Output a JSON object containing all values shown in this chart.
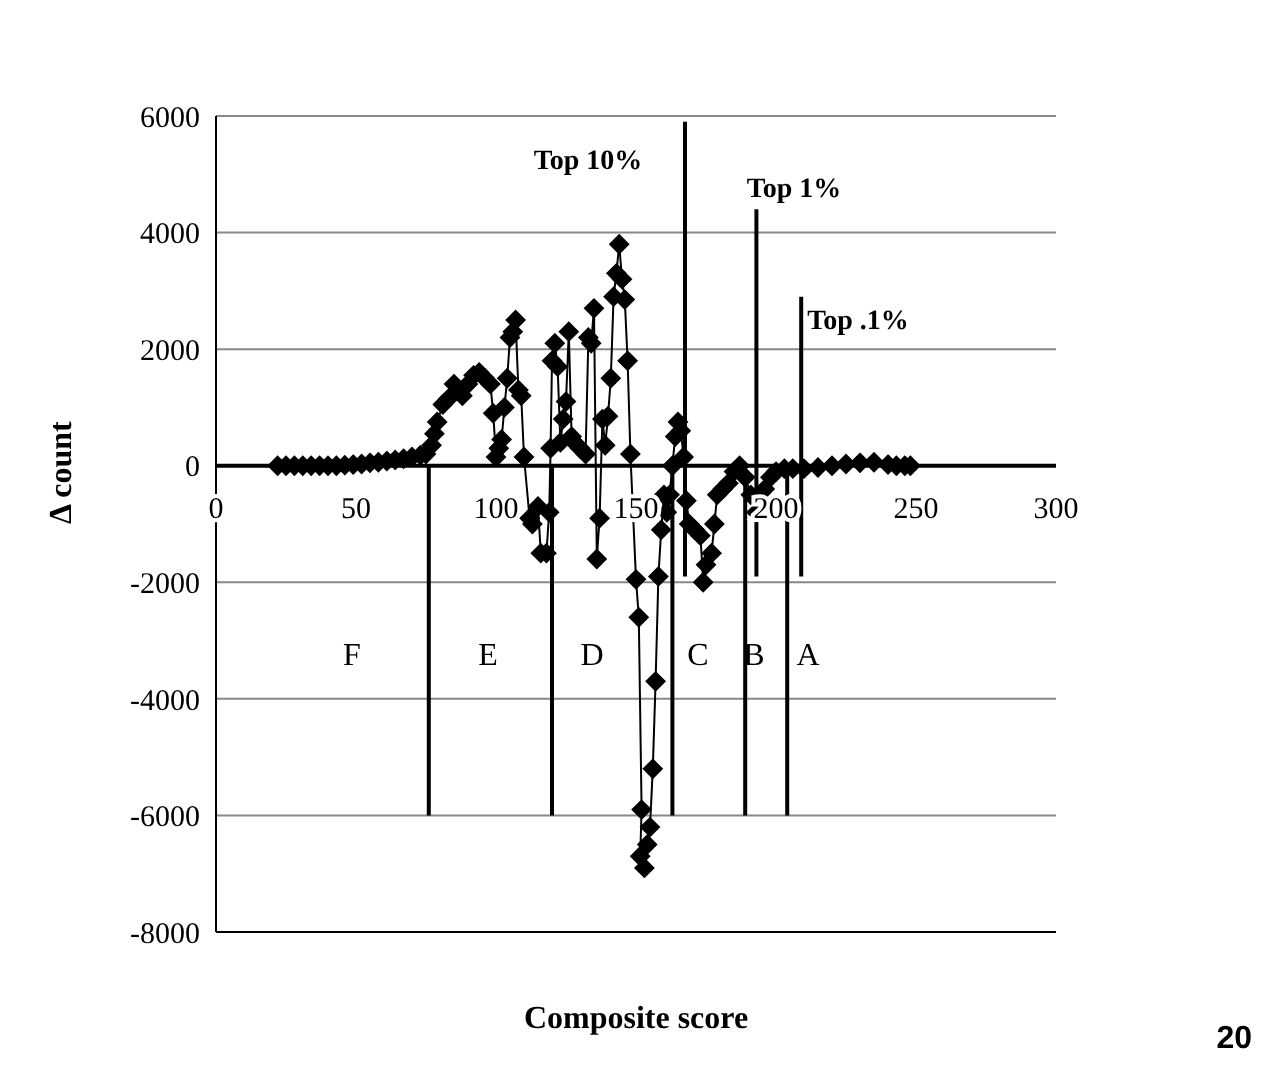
{
  "chart_data": {
    "type": "line",
    "xlabel": "Composite score",
    "ylabel": "Δ count",
    "xlim": [
      0,
      300
    ],
    "xticks": [
      0,
      50,
      100,
      150,
      200,
      250,
      300
    ],
    "ylim": [
      -8000,
      6000
    ],
    "yticks": [
      -8000,
      -6000,
      -4000,
      -2000,
      0,
      2000,
      4000,
      6000
    ],
    "grid": "y",
    "marker": "diamond",
    "series": [
      {
        "color": "#000000",
        "x": [
          22,
          25,
          28,
          31,
          34,
          37,
          40,
          43,
          46,
          49,
          52,
          55,
          58,
          61,
          64,
          67,
          70,
          73,
          75,
          77,
          78,
          79,
          81,
          83,
          85,
          87,
          88,
          90,
          92,
          94,
          96,
          98,
          99,
          100,
          101,
          102,
          103,
          104,
          105,
          106,
          107,
          108,
          109,
          110,
          112,
          113,
          115,
          116,
          118,
          119,
          119.5,
          120,
          121,
          122,
          123,
          124,
          125,
          126,
          127,
          128,
          130,
          132,
          133,
          134,
          135,
          136,
          137,
          138,
          139,
          140,
          141,
          142,
          143,
          144,
          145,
          146,
          147,
          148,
          150,
          151,
          152,
          151.5,
          153,
          154,
          155,
          156,
          157,
          158,
          159,
          160,
          161,
          162,
          163,
          164,
          165,
          166,
          167,
          168,
          169,
          171,
          173,
          174,
          175,
          177,
          178,
          179,
          181,
          183,
          185,
          187,
          189,
          191,
          193,
          194,
          196,
          198,
          200,
          203,
          206,
          210,
          215,
          220,
          225,
          230,
          235,
          240,
          243,
          246,
          248
        ],
        "values": [
          0,
          0,
          0,
          0,
          0,
          0,
          0,
          0,
          10,
          20,
          30,
          50,
          60,
          80,
          100,
          120,
          150,
          180,
          200,
          350,
          550,
          750,
          1050,
          1150,
          1400,
          1300,
          1200,
          1400,
          1550,
          1600,
          1500,
          1400,
          900,
          150,
          300,
          450,
          1000,
          1500,
          2200,
          2300,
          2500,
          1300,
          1200,
          150,
          -900,
          -1000,
          -700,
          -1500,
          -1500,
          -800,
          300,
          1800,
          2100,
          1700,
          400,
          800,
          1100,
          2300,
          500,
          400,
          300,
          200,
          2200,
          2100,
          2700,
          -1600,
          -900,
          800,
          350,
          850,
          1500,
          2900,
          3300,
          3800,
          3200,
          2850,
          1800,
          200,
          -1950,
          -2600,
          -5900,
          -6700,
          -6900,
          -6500,
          -6200,
          -5200,
          -3700,
          -1900,
          -1100,
          -500,
          -800,
          -500,
          0,
          500,
          750,
          600,
          150,
          -600,
          -1000,
          -1100,
          -1200,
          -2000,
          -1700,
          -1500,
          -1000,
          -500,
          -400,
          -300,
          -100,
          0,
          -200,
          -500,
          -800,
          -600,
          -400,
          -200,
          -100,
          -50,
          -50,
          -50,
          -30,
          0,
          30,
          50,
          60,
          20,
          0,
          0,
          0
        ]
      },
      {
        "color": "#000000",
        "marker": "none",
        "x": [
          76,
          76
        ],
        "values": [
          0,
          -6000
        ]
      },
      {
        "color": "#000000",
        "marker": "none",
        "x": [
          120,
          120
        ],
        "values": [
          0,
          -6000
        ]
      },
      {
        "color": "#000000",
        "marker": "none",
        "x": [
          163,
          163
        ],
        "values": [
          0,
          -6000
        ]
      },
      {
        "color": "#000000",
        "marker": "none",
        "x": [
          189,
          189
        ],
        "values": [
          0,
          -6000
        ]
      },
      {
        "color": "#000000",
        "marker": "none",
        "x": [
          204,
          204
        ],
        "values": [
          0,
          -6000
        ]
      },
      {
        "color": "#000000",
        "marker": "none",
        "x": [
          167.5,
          167.5
        ],
        "values": [
          -1900,
          5900
        ]
      },
      {
        "color": "#000000",
        "marker": "none",
        "x": [
          193,
          193
        ],
        "values": [
          -1900,
          4400
        ]
      },
      {
        "color": "#000000",
        "marker": "none",
        "x": [
          209,
          209
        ],
        "values": [
          -1900,
          2900
        ]
      }
    ],
    "annotations": [
      "Top 10%",
      "Top 1%",
      "Top .1%",
      "F",
      "E",
      "D",
      "C",
      "B",
      "A",
      "20"
    ]
  }
}
